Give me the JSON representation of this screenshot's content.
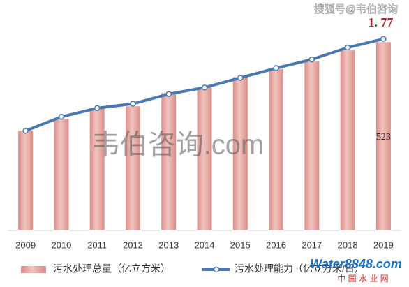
{
  "chart_data": {
    "type": "bar-line",
    "categories": [
      "2009",
      "2010",
      "2011",
      "2012",
      "2013",
      "2014",
      "2015",
      "2016",
      "2017",
      "2018",
      "2019"
    ],
    "series": [
      {
        "name": "污水处理总量（亿立方米）",
        "type": "bar",
        "color": "#e3a39d",
        "values": [
          277,
          310,
          339,
          345,
          382,
          397,
          426,
          449,
          469,
          500,
          523
        ],
        "value_labels": [
          null,
          null,
          null,
          null,
          null,
          null,
          null,
          null,
          null,
          null,
          "523"
        ]
      },
      {
        "name": "污水处理能力（亿立方米/日）",
        "type": "line",
        "axis": "y2",
        "color": "#4a78b0",
        "values": [
          0.92,
          1.05,
          1.13,
          1.17,
          1.26,
          1.32,
          1.41,
          1.5,
          1.58,
          1.69,
          1.77
        ],
        "value_labels": [
          null,
          null,
          null,
          null,
          null,
          null,
          null,
          null,
          null,
          null,
          "1. 77"
        ]
      }
    ],
    "ylim": [
      0,
      600
    ],
    "y2lim": [
      0,
      2
    ],
    "annotations": [
      "搜狐号@韦伯咨询",
      "韦伯咨询.com",
      "Water8848.com",
      "中 国 水 业 网"
    ]
  }
}
